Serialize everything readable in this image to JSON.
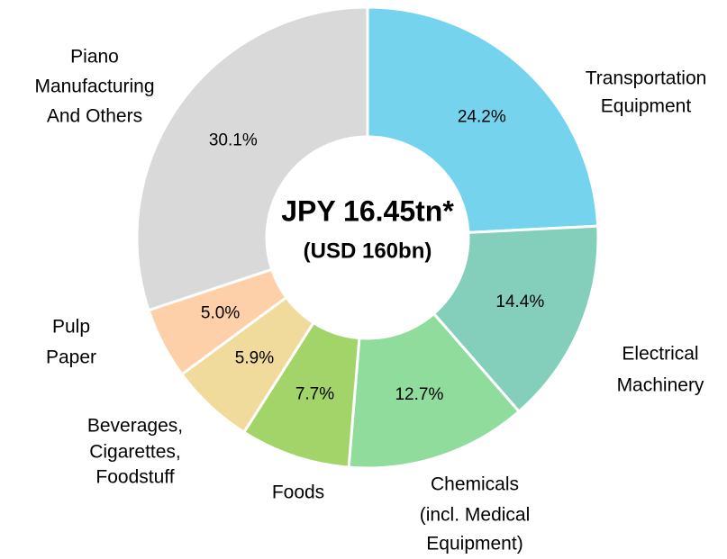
{
  "chart_data": {
    "type": "donut",
    "center_title": "JPY 16.45tn*",
    "center_subtitle": "(USD 160bn)",
    "categories": [
      [
        "Transportation",
        "Equipment"
      ],
      [
        "Electrical",
        "Machinery"
      ],
      [
        "Chemicals",
        "(incl. Medical",
        "Equipment)"
      ],
      [
        "Foods"
      ],
      [
        "Beverages,",
        "Cigarettes,",
        "Foodstuff"
      ],
      [
        "Pulp",
        "Paper"
      ],
      [
        "Piano",
        "Manufacturing",
        "And Others"
      ]
    ],
    "values": [
      24.2,
      14.4,
      12.7,
      7.7,
      5.9,
      5.0,
      30.1
    ],
    "value_labels": [
      "24.2%",
      "14.4%",
      "12.7%",
      "7.7%",
      "5.9%",
      "5.0%",
      "30.1%"
    ],
    "colors": [
      "#76d3ee",
      "#84cfbc",
      "#8fdc9c",
      "#a2d46a",
      "#f0da9c",
      "#fdd0aa",
      "#d9d9d9"
    ]
  }
}
